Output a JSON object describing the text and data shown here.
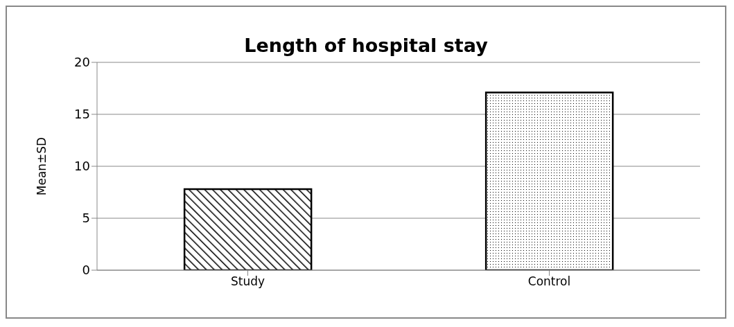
{
  "chart_data": {
    "type": "bar",
    "title": "Length of hospital stay",
    "ylabel": "Mean±SD",
    "categories": [
      "Study",
      "Control"
    ],
    "values": [
      7.8,
      17.1
    ],
    "colors": [
      "#000000",
      "#000000"
    ],
    "ylim": [
      0,
      20
    ],
    "yticks": [
      0,
      5,
      10,
      15,
      20
    ],
    "grid": "y"
  }
}
